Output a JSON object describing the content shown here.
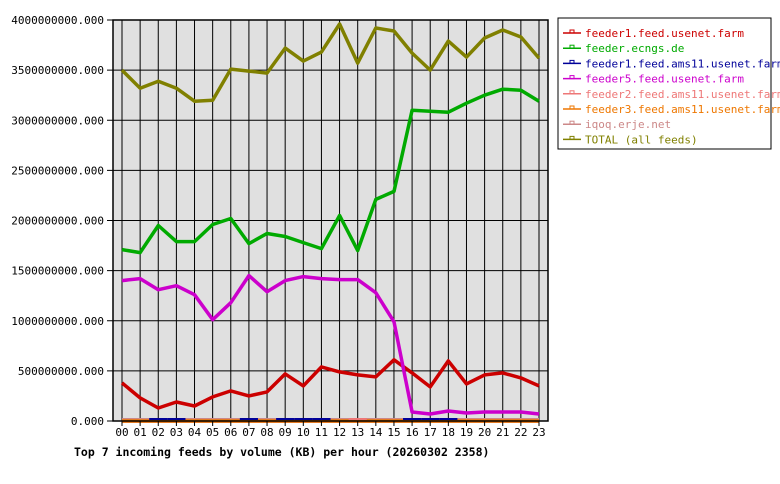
{
  "chart_data": {
    "type": "line",
    "title": "Top 7 incoming feeds by volume (KB) per hour (20260302 2358)",
    "xlabel": "",
    "ylabel": "",
    "ylim": [
      0,
      4000000000
    ],
    "grid": true,
    "legend_position": "right",
    "categories": [
      "00",
      "01",
      "02",
      "03",
      "04",
      "05",
      "06",
      "07",
      "08",
      "09",
      "10",
      "11",
      "12",
      "13",
      "14",
      "15",
      "16",
      "17",
      "18",
      "19",
      "20",
      "21",
      "22",
      "23"
    ],
    "y_ticks": [
      "0.000",
      "500000000.000",
      "1000000000.000",
      "1500000000.000",
      "2000000000.000",
      "2500000000.000",
      "3000000000.000",
      "3500000000.000",
      "4000000000.000"
    ],
    "series": [
      {
        "name": "feeder1.feed.usenet.farm",
        "color": "#cc0000",
        "values": [
          380000000,
          230000000,
          130000000,
          190000000,
          150000000,
          240000000,
          300000000,
          250000000,
          290000000,
          470000000,
          350000000,
          540000000,
          490000000,
          460000000,
          440000000,
          610000000,
          480000000,
          340000000,
          600000000,
          370000000,
          460000000,
          480000000,
          430000000,
          350000000
        ]
      },
      {
        "name": "feeder.ecngs.de",
        "color": "#00aa00",
        "values": [
          1710000000,
          1680000000,
          1950000000,
          1790000000,
          1790000000,
          1960000000,
          2020000000,
          1770000000,
          1870000000,
          1840000000,
          1780000000,
          1720000000,
          2050000000,
          1700000000,
          2210000000,
          2290000000,
          3100000000,
          3090000000,
          3080000000,
          3170000000,
          3250000000,
          3310000000,
          3300000000,
          3190000000
        ]
      },
      {
        "name": "feeder1.feed.ams11.usenet.farm",
        "color": "#000099",
        "values": [
          0,
          0,
          20000000,
          20000000,
          0,
          0,
          0,
          20000000,
          0,
          20000000,
          20000000,
          20000000,
          0,
          0,
          0,
          0,
          20000000,
          20000000,
          20000000,
          0,
          0,
          0,
          0,
          0
        ]
      },
      {
        "name": "feeder5.feed.usenet.farm",
        "color": "#cc00cc",
        "values": [
          1400000000,
          1420000000,
          1310000000,
          1350000000,
          1260000000,
          1010000000,
          1180000000,
          1450000000,
          1290000000,
          1400000000,
          1440000000,
          1420000000,
          1410000000,
          1410000000,
          1280000000,
          990000000,
          90000000,
          70000000,
          100000000,
          80000000,
          90000000,
          90000000,
          90000000,
          70000000
        ]
      },
      {
        "name": "feeder2.feed.ams11.usenet.farm",
        "color": "#ee7777",
        "values": [
          0,
          0,
          0,
          0,
          0,
          0,
          0,
          0,
          0,
          0,
          0,
          0,
          0,
          20000000,
          0,
          0,
          0,
          0,
          0,
          0,
          0,
          0,
          0,
          0
        ]
      },
      {
        "name": "feeder3.feed.ams11.usenet.farm",
        "color": "#ee7700",
        "values": [
          0,
          0,
          0,
          0,
          0,
          0,
          0,
          0,
          0,
          0,
          0,
          0,
          0,
          0,
          0,
          0,
          0,
          0,
          0,
          0,
          0,
          0,
          0,
          0
        ]
      },
      {
        "name": "iqoq.erje.net",
        "color": "#cc8888",
        "values": [
          5000000,
          5000000,
          5000000,
          5000000,
          5000000,
          5000000,
          5000000,
          5000000,
          5000000,
          5000000,
          5000000,
          5000000,
          5000000,
          5000000,
          5000000,
          5000000,
          5000000,
          5000000,
          5000000,
          5000000,
          5000000,
          5000000,
          5000000,
          5000000
        ]
      },
      {
        "name": "TOTAL (all feeds)",
        "color": "#808000",
        "values": [
          3500000000,
          3320000000,
          3390000000,
          3320000000,
          3190000000,
          3200000000,
          3510000000,
          3490000000,
          3470000000,
          3720000000,
          3590000000,
          3680000000,
          3960000000,
          3570000000,
          3920000000,
          3890000000,
          3670000000,
          3500000000,
          3790000000,
          3630000000,
          3820000000,
          3900000000,
          3830000000,
          3620000000
        ]
      }
    ]
  },
  "layout": {
    "plot_bg": "#e0e0e0",
    "grid_color": "#000000"
  }
}
